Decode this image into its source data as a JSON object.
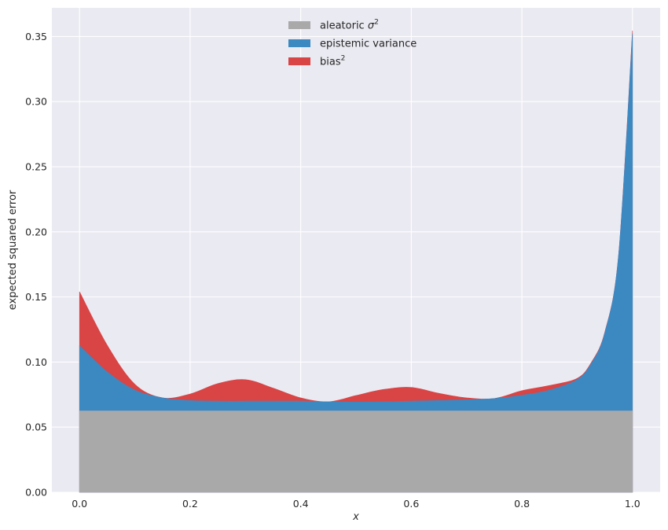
{
  "chart_data": {
    "type": "area",
    "stacked": true,
    "xlabel": "x",
    "ylabel": "expected squared error",
    "xlim": [
      -0.05,
      1.05
    ],
    "ylim": [
      0,
      0.372
    ],
    "x_ticks": [
      0.0,
      0.2,
      0.4,
      0.6,
      0.8,
      1.0
    ],
    "y_ticks": [
      0.0,
      0.05,
      0.1,
      0.15,
      0.2,
      0.25,
      0.3,
      0.35
    ],
    "grid": true,
    "legend_position": "top-center",
    "x": [
      0.0,
      0.05,
      0.1,
      0.15,
      0.2,
      0.25,
      0.3,
      0.35,
      0.4,
      0.45,
      0.5,
      0.55,
      0.6,
      0.65,
      0.7,
      0.75,
      0.8,
      0.85,
      0.9,
      0.925,
      0.95,
      0.975,
      1.0
    ],
    "series": [
      {
        "name": "aleatoric σ²",
        "label_main": "aleatoric ",
        "label_symbol": "σ",
        "label_sup": "2",
        "color": "#a9a9a9",
        "values": [
          0.0625,
          0.0625,
          0.0625,
          0.0625,
          0.0625,
          0.0625,
          0.0625,
          0.0625,
          0.0625,
          0.0625,
          0.0625,
          0.0625,
          0.0625,
          0.0625,
          0.0625,
          0.0625,
          0.0625,
          0.0625,
          0.0625,
          0.0625,
          0.0625,
          0.0625,
          0.0625
        ]
      },
      {
        "name": "epistemic variance",
        "label_main": "epistemic variance",
        "label_symbol": "",
        "label_sup": "",
        "color": "#3c89c2",
        "values": [
          0.05,
          0.03,
          0.016,
          0.01,
          0.008,
          0.0075,
          0.0075,
          0.0075,
          0.0075,
          0.007,
          0.0068,
          0.007,
          0.0075,
          0.008,
          0.0085,
          0.0095,
          0.012,
          0.016,
          0.024,
          0.036,
          0.06,
          0.12,
          0.29
        ]
      },
      {
        "name": "bias²",
        "label_main": "bias",
        "label_symbol": "",
        "label_sup": "2",
        "color": "#d94445",
        "values": [
          0.0415,
          0.0205,
          0.0045,
          0.0,
          0.005,
          0.0135,
          0.0165,
          0.01,
          0.0025,
          0.0,
          0.005,
          0.0095,
          0.0105,
          0.0055,
          0.0015,
          0.0,
          0.0035,
          0.0035,
          0.001,
          0.0008,
          0.0006,
          0.0004,
          0.002
        ]
      }
    ]
  }
}
